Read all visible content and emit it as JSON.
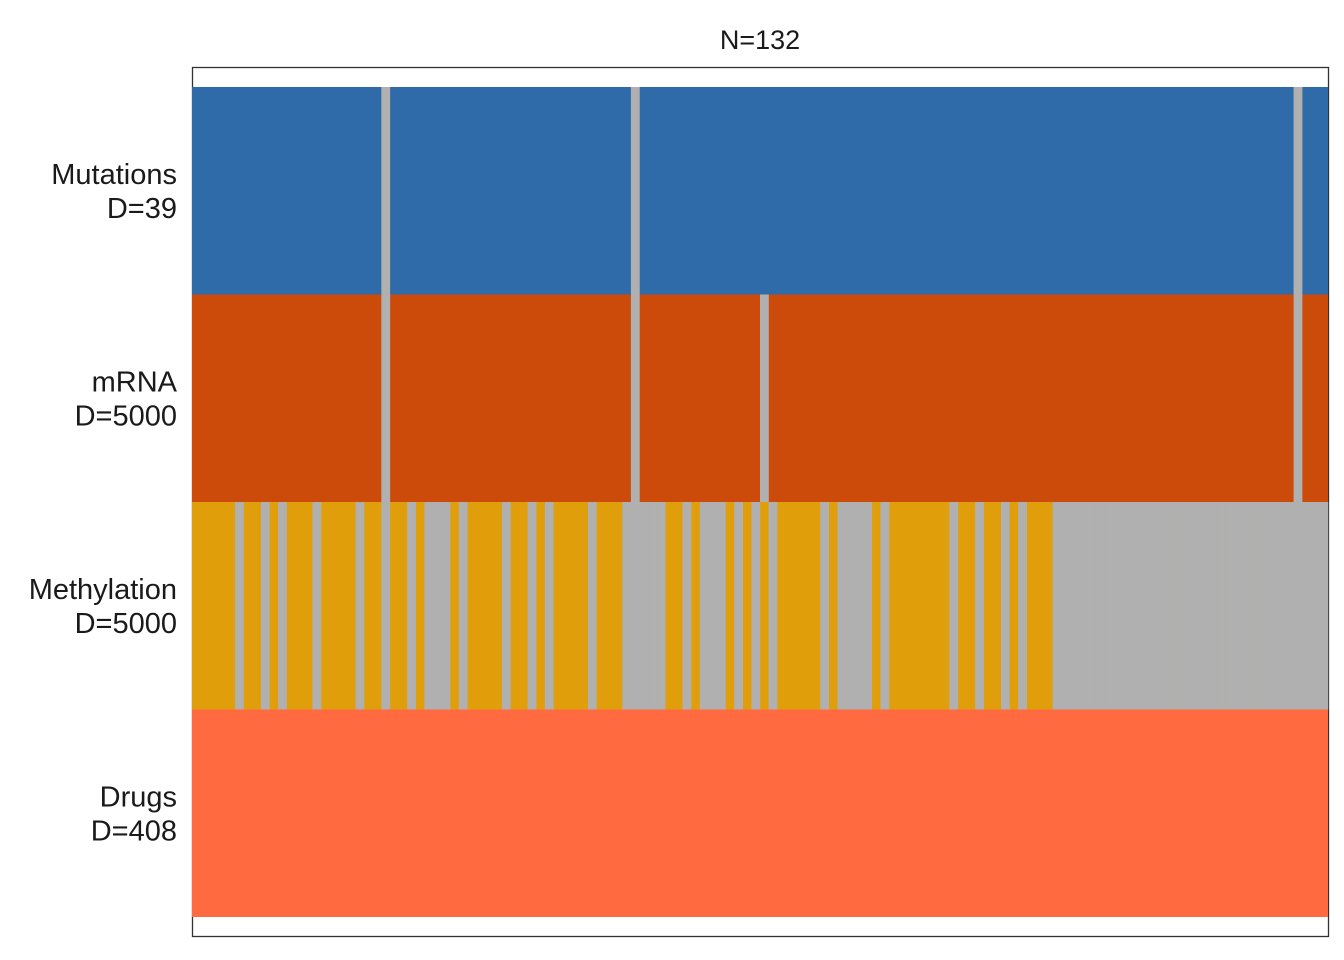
{
  "chart_data": {
    "type": "heatmap",
    "title": "N=132",
    "n_samples": 132,
    "views": [
      {
        "name": "Mutations",
        "dim_label": "D=39",
        "color": "#2E6BA8",
        "missing_samples": [
          22,
          51,
          128
        ]
      },
      {
        "name": "mRNA",
        "dim_label": "D=5000",
        "color": "#CC4A0A",
        "missing_samples": [
          22,
          51,
          66,
          128
        ]
      },
      {
        "name": "Methylation",
        "dim_label": "D=5000",
        "color": "#DF9E0A",
        "missing_samples": [
          5,
          8,
          10,
          14,
          19,
          22,
          25,
          27,
          28,
          29,
          31,
          36,
          39,
          41,
          46,
          50,
          51,
          52,
          53,
          54,
          57,
          59,
          60,
          61,
          63,
          65,
          67,
          73,
          75,
          76,
          77,
          78,
          80,
          88,
          91,
          94,
          96,
          100,
          101,
          102,
          103,
          104,
          105,
          106,
          107,
          108,
          109,
          110,
          111,
          112,
          113,
          114,
          115,
          116,
          117,
          118,
          119,
          120,
          121,
          122,
          123,
          124,
          125,
          126,
          127,
          128,
          129,
          130,
          131
        ]
      },
      {
        "name": "Drugs",
        "dim_label": "D=408",
        "color": "#FF6A40",
        "missing_samples": []
      }
    ],
    "missing_color": "#B0B0B0",
    "legend": "none",
    "grid": false
  }
}
